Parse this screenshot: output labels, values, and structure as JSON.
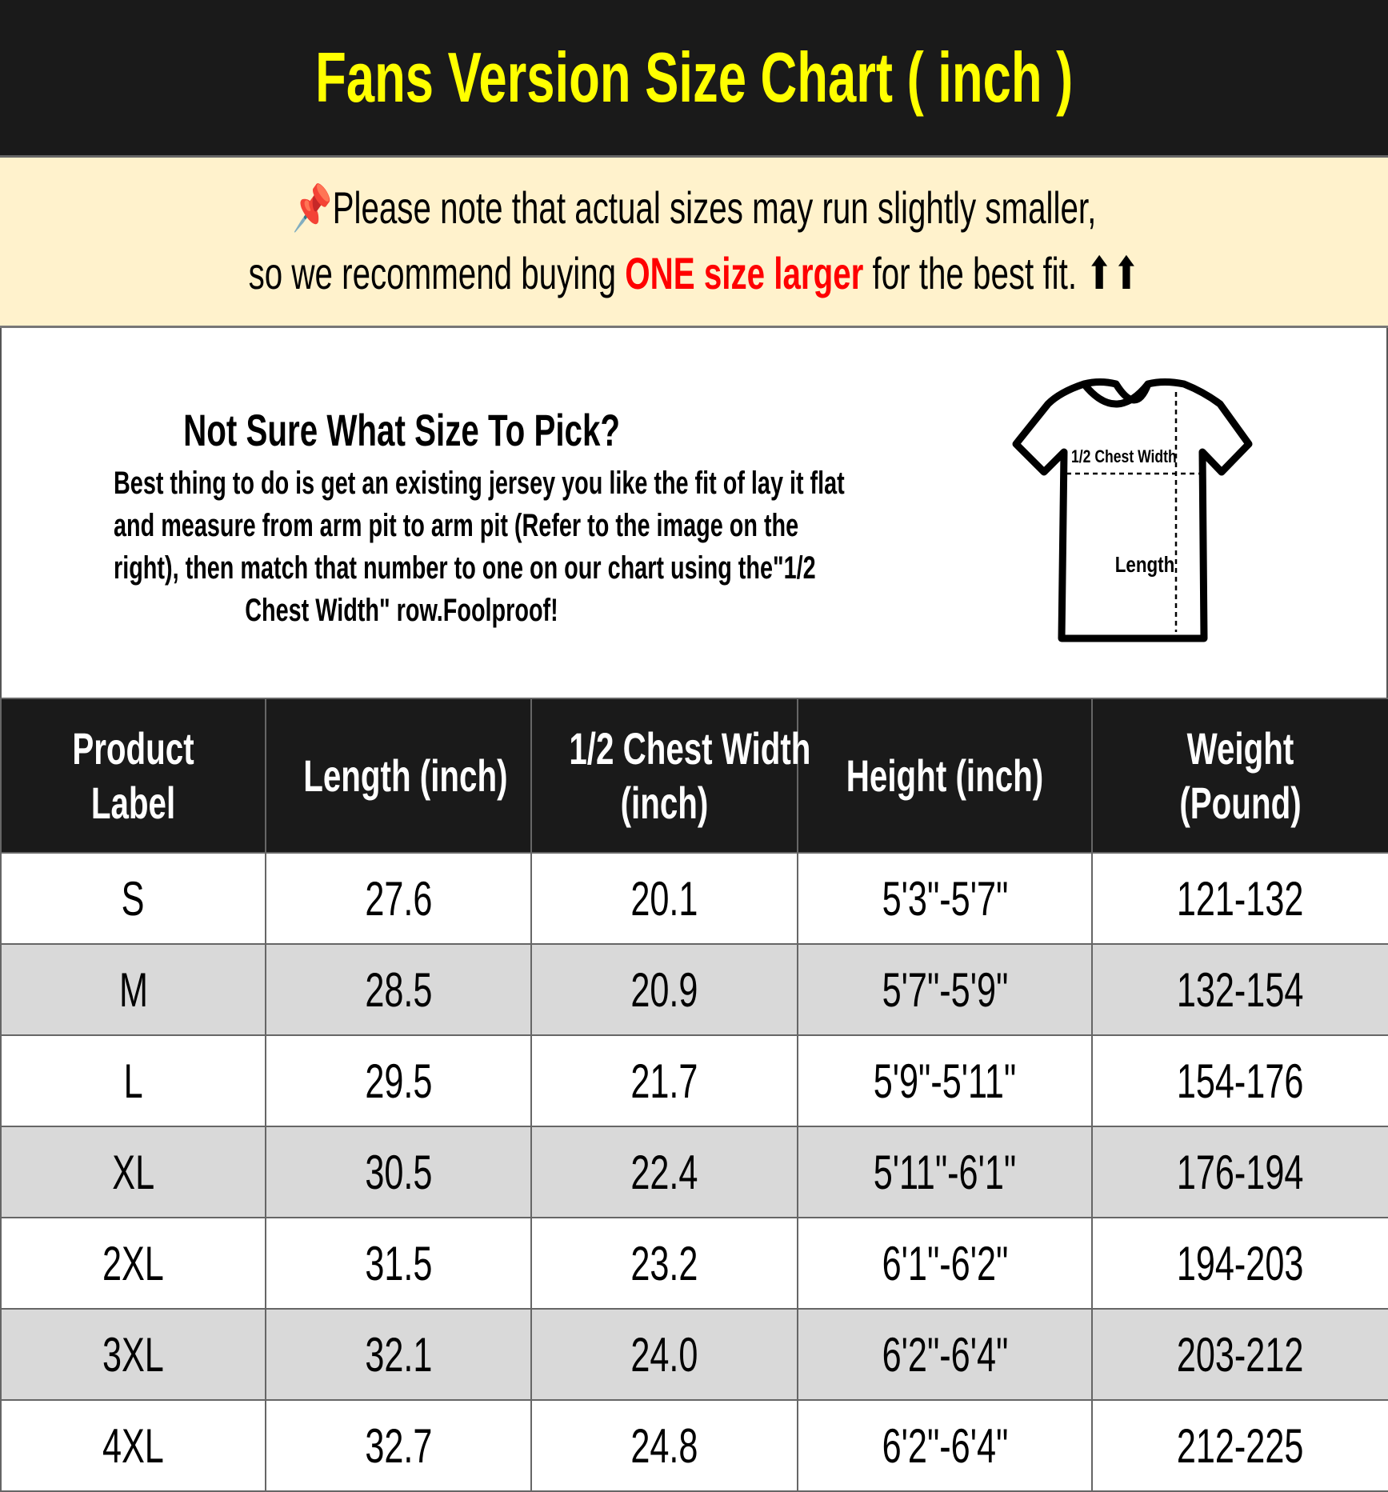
{
  "title": "Fans Version Size Chart ( inch )",
  "note": {
    "pin_icon": "pushpin-icon",
    "line1": "Please note that actual sizes may run slightly smaller,",
    "line2_pre": "so we recommend buying ",
    "line2_highlight": "ONE size larger",
    "line2_post": " for the best fit. ",
    "arrows": "⬆⬆",
    "highlight_color": "#ff0000"
  },
  "info": {
    "heading": "Not Sure What Size To Pick?",
    "lines": [
      "Best thing to do is get an existing jersey you like the fit of lay it flat",
      "and measure from arm pit to arm pit (Refer to the image on the",
      "right), then match that number to one on our chart using the\"1/2",
      "Chest Width\" row.Foolproof!"
    ],
    "diagram": {
      "chest_label": "1/2 Chest Width",
      "length_label": "Length"
    }
  },
  "table": {
    "headers": [
      [
        "Product",
        "Label"
      ],
      [
        "Length (inch)"
      ],
      [
        "1/2 Chest Width",
        "(inch)"
      ],
      [
        "Height (inch)"
      ],
      [
        "Weight",
        "(Pound)"
      ]
    ],
    "rows": [
      [
        "S",
        "27.6",
        "20.1",
        "5'3\"-5'7\"",
        "121-132"
      ],
      [
        "M",
        "28.5",
        "20.9",
        "5'7\"-5'9\"",
        "132-154"
      ],
      [
        "L",
        "29.5",
        "21.7",
        "5'9\"-5'11\"",
        "154-176"
      ],
      [
        "XL",
        "30.5",
        "22.4",
        "5'11\"-6'1\"",
        "176-194"
      ],
      [
        "2XL",
        "31.5",
        "23.2",
        "6'1\"-6'2\"",
        "194-203"
      ],
      [
        "3XL",
        "32.1",
        "24.0",
        "6'2\"-6'4\"",
        "203-212"
      ],
      [
        "4XL",
        "32.7",
        "24.8",
        "6'2\"-6'4\"",
        "212-225"
      ]
    ]
  }
}
